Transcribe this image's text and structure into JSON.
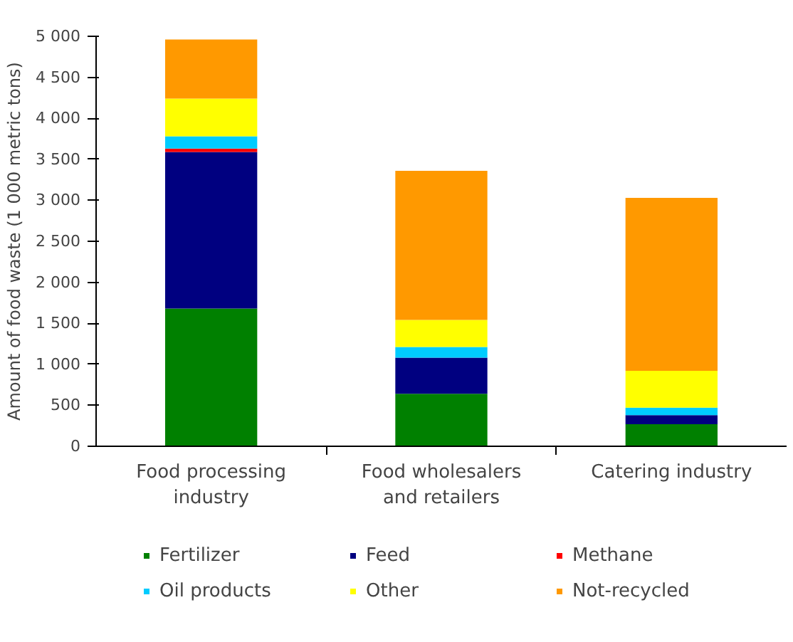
{
  "chart_data": {
    "type": "bar",
    "stacked": true,
    "ylabel": "Amount of food waste (1 000 metric tons)",
    "categories": [
      "Food processing industry",
      "Food wholesalers and retailers",
      "Catering industry"
    ],
    "series": [
      {
        "name": "Fertilizer",
        "color": "#008000",
        "values": [
          1680,
          640,
          270
        ]
      },
      {
        "name": "Feed",
        "color": "#000080",
        "values": [
          1910,
          440,
          110
        ]
      },
      {
        "name": "Methane",
        "color": "#ff0000",
        "values": [
          40,
          0,
          0
        ]
      },
      {
        "name": "Oil products",
        "color": "#00ccff",
        "values": [
          150,
          130,
          90
        ]
      },
      {
        "name": "Other",
        "color": "#ffff00",
        "values": [
          460,
          330,
          450
        ]
      },
      {
        "name": "Not-recycled",
        "color": "#ff9900",
        "values": [
          720,
          1820,
          2110
        ]
      }
    ],
    "ylim": [
      0,
      5000
    ],
    "yticks": [
      0,
      500,
      {
        "value": 1000,
        "label": "1 000"
      },
      {
        "value": 1500,
        "label": "1 500"
      },
      {
        "value": 2000,
        "label": "2 000"
      },
      {
        "value": 2500,
        "label": "2 500"
      },
      {
        "value": 3000,
        "label": "3 000"
      },
      {
        "value": 3500,
        "label": "3 500"
      },
      {
        "value": 4000,
        "label": "4 000"
      },
      {
        "value": 4500,
        "label": "4 500"
      },
      {
        "value": 5000,
        "label": "5 000"
      }
    ],
    "grid": false,
    "legend": "bottom"
  }
}
